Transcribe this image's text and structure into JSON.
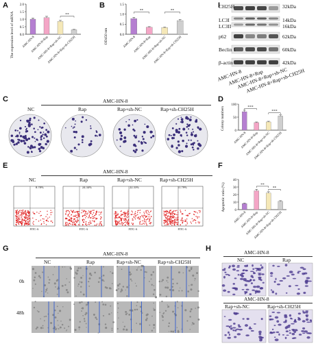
{
  "panel_letters": [
    "A",
    "B",
    "I",
    "C",
    "D",
    "E",
    "F",
    "G",
    "H"
  ],
  "panel_A": {
    "ylabel": "The expression level of mRNA",
    "yticks": [
      "0.0",
      "0.5",
      "1.0",
      "1.5",
      "2.0"
    ],
    "sig": "**"
  },
  "panel_B": {
    "ylabel": "OD450 nm",
    "yticks": [
      "0.0",
      "0.5",
      "1.0",
      "1.5"
    ],
    "sig1": "**",
    "sig2": "**"
  },
  "groups": [
    "AMC-HN-8",
    "AMC-HN-8+Rap",
    "AMC-HN-8+Rap+sh-NC",
    "AMC-HN-8+Rap+sh-CH25H"
  ],
  "bar_colors": [
    "#b57fd1",
    "#f4a6c6",
    "#f5e8b8",
    "#cfcfcf"
  ],
  "panel_I": {
    "proteins": [
      "CH25H",
      "LC3I",
      "LC3II",
      "p62",
      "Beclin 1",
      "β-actin"
    ],
    "sizes": [
      "32kDa",
      "14kDa",
      "16kDa",
      "62kDa",
      "60kDa",
      "42kDa"
    ],
    "lanes": [
      "AMC-HN-8",
      "AMC-HN-8+Rap",
      "AMC-HN-8+Rap+sh-NC",
      "AMC-HN-8+Rap+sh-CH25H"
    ]
  },
  "panel_C": {
    "header": "AMC-HN-8",
    "labels": [
      "NC",
      "Rap",
      "Rap+sh-NC",
      "Rap+sh-CH25H"
    ]
  },
  "panel_D": {
    "ylabel": "Colony numbers",
    "yticks": [
      "0",
      "50",
      "100"
    ],
    "sig1": "***",
    "sig2": "***"
  },
  "panel_E": {
    "header": "AMC-HN-8",
    "labels": [
      "NC",
      "Rap",
      "Rap+sh-NC",
      "Rap+sh-CH25H"
    ],
    "percents": [
      "8.78%",
      "24.34%",
      "22.33%",
      "11.79%"
    ],
    "axis": "FITC-A"
  },
  "panel_F": {
    "ylabel": "Apoptotic ratio (%)",
    "yticks": [
      "0",
      "10",
      "20",
      "30",
      "40"
    ],
    "sig1": "**",
    "sig2": "**"
  },
  "panel_G": {
    "header": "AMC-HN-8",
    "labels": [
      "NC",
      "Rap",
      "Rap+sh-NC",
      "Rap+sh-CH25H"
    ],
    "rows": [
      "0h",
      "48h"
    ]
  },
  "panel_H": {
    "header1": "AMC-HN-8",
    "labels1": [
      "NC",
      "Rap"
    ],
    "header2": "AMC-HN-8",
    "labels2": [
      "Rap+sh-NC",
      "Rap+sh-CH25H"
    ]
  },
  "chart_data": [
    {
      "type": "bar",
      "categories": [
        "AMC-HN-8",
        "AMC-HN-8+Rap",
        "AMC-HN-8+Rap+sh-NC",
        "AMC-HN-8+Rap+sh-CH25H"
      ],
      "values": [
        1.0,
        1.1,
        0.85,
        0.3
      ],
      "ylim": [
        0,
        2.0
      ],
      "ylabel": "The expression level of mRNA"
    },
    {
      "type": "bar",
      "categories": [
        "AMC-HN-8",
        "AMC-HN-8+Rap",
        "AMC-HN-8+Rap+sh-NC",
        "AMC-HN-8+Rap+sh-CH25H"
      ],
      "values": [
        0.78,
        0.35,
        0.33,
        0.68
      ],
      "ylim": [
        0,
        1.5
      ],
      "ylabel": "OD450 nm"
    },
    {
      "type": "bar",
      "categories": [
        "AMC-HN-8",
        "AMC-HN-8+Rap",
        "AMC-HN-8+Rap+sh-NC",
        "AMC-HN-8+Rap+sh-CH25H"
      ],
      "values": [
        85,
        35,
        38,
        65
      ],
      "ylim": [
        0,
        120
      ],
      "ylabel": "Colony numbers"
    },
    {
      "type": "bar",
      "categories": [
        "AMC-HN-8",
        "AMC-HN-8+Rap",
        "AMC-HN-8+Rap+sh-NC",
        "AMC-HN-8+Rap+sh-CH25H"
      ],
      "values": [
        8,
        25,
        22,
        11
      ],
      "ylim": [
        0,
        40
      ],
      "ylabel": "Apoptotic ratio (%)"
    }
  ]
}
